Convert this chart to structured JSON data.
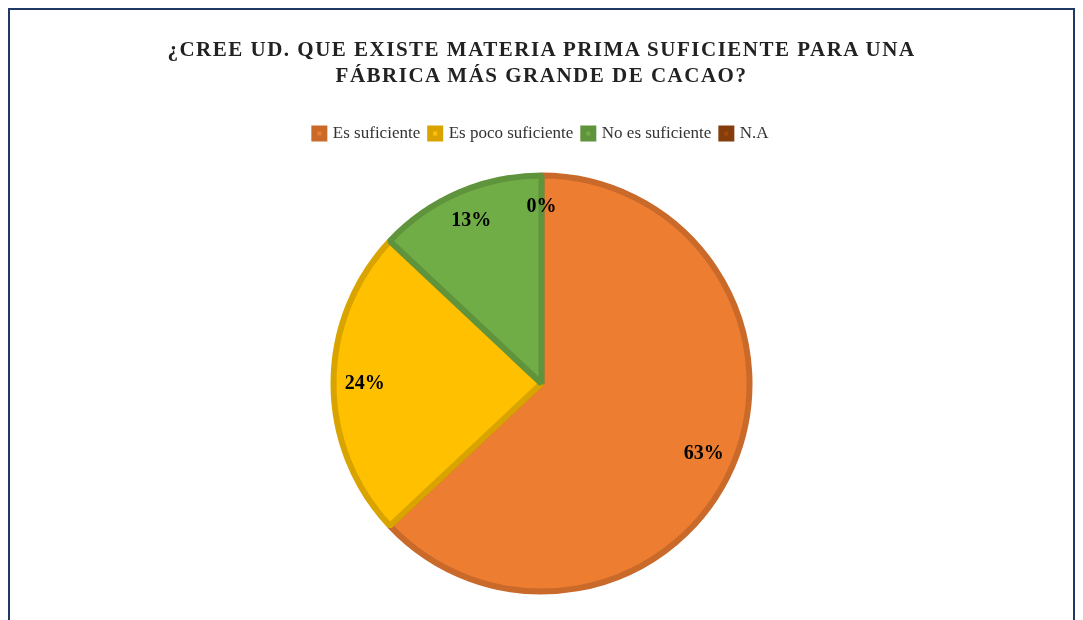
{
  "chart_data": {
    "type": "pie",
    "title": "¿CREE UD. QUE EXISTE MATERIA PRIMA SUFICIENTE PARA UNA FÁBRICA MÁS GRANDE DE CACAO?",
    "categories": [
      "Es suficiente",
      "Es poco suficiente",
      "No es suficiente",
      "N.A"
    ],
    "values": [
      63,
      24,
      13,
      0
    ],
    "colors": [
      "#ed7d31",
      "#ffc000",
      "#70ad47",
      "#9e480e"
    ],
    "value_labels": [
      "63%",
      "24%",
      "13%",
      "0%"
    ],
    "legend": "top"
  }
}
